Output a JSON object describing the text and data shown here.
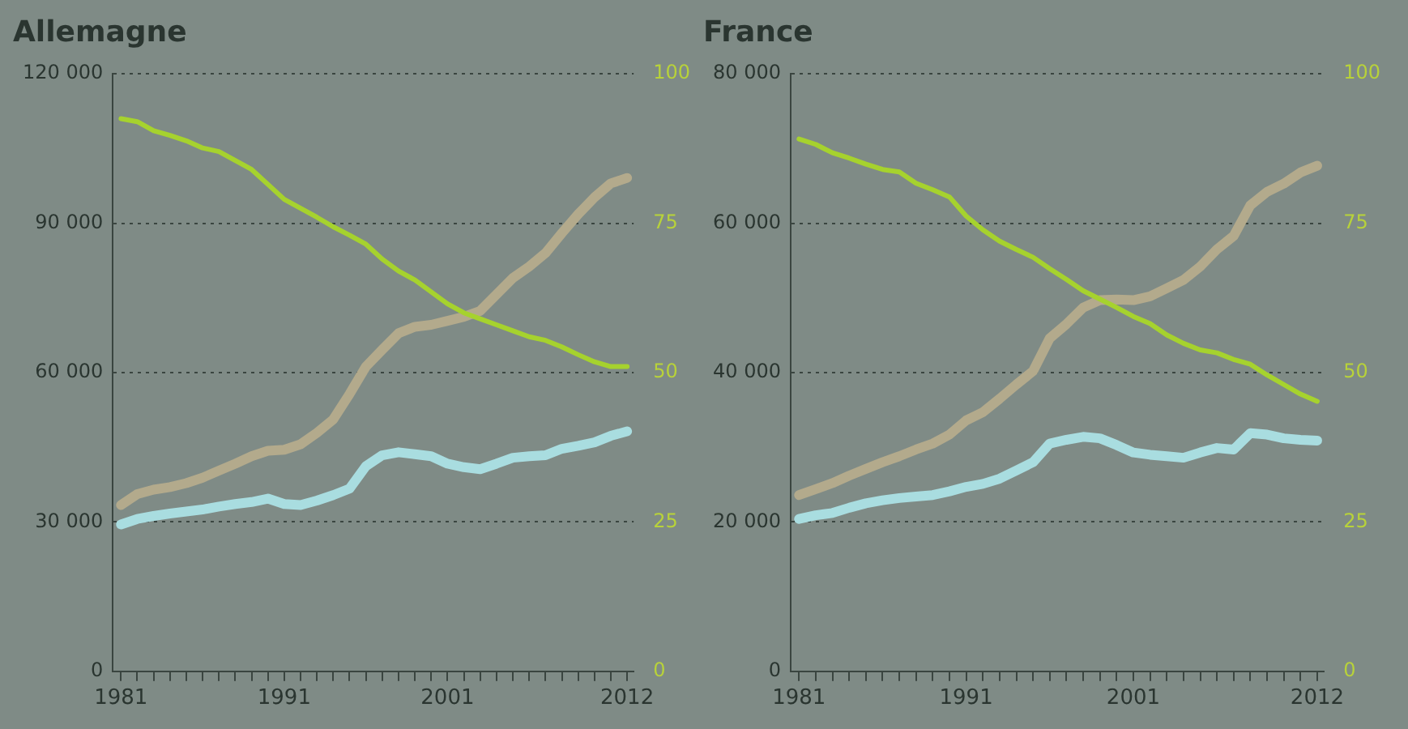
{
  "chart_data": [
    {
      "type": "line",
      "title": "Allemagne",
      "x": [
        1981,
        1982,
        1983,
        1984,
        1985,
        1986,
        1987,
        1988,
        1989,
        1990,
        1991,
        1992,
        1993,
        1994,
        1995,
        1996,
        1997,
        1998,
        1999,
        2000,
        2001,
        2002,
        2003,
        2004,
        2005,
        2006,
        2007,
        2008,
        2009,
        2010,
        2011,
        2012
      ],
      "xlim": [
        1980.5,
        2012.4
      ],
      "xticks": [
        {
          "value": 1981,
          "label": "1981"
        },
        {
          "value": 1982,
          "label": null
        },
        {
          "value": 1983,
          "label": null
        },
        {
          "value": 1984,
          "label": null
        },
        {
          "value": 1985,
          "label": null
        },
        {
          "value": 1986,
          "label": null
        },
        {
          "value": 1987,
          "label": null
        },
        {
          "value": 1988,
          "label": null
        },
        {
          "value": 1989,
          "label": null
        },
        {
          "value": 1990,
          "label": null
        },
        {
          "value": 1991,
          "label": "1991"
        },
        {
          "value": 1992,
          "label": null
        },
        {
          "value": 1993,
          "label": null
        },
        {
          "value": 1994,
          "label": null
        },
        {
          "value": 1995,
          "label": null
        },
        {
          "value": 1996,
          "label": null
        },
        {
          "value": 1997,
          "label": null
        },
        {
          "value": 1998,
          "label": null
        },
        {
          "value": 1999,
          "label": null
        },
        {
          "value": 2000,
          "label": null
        },
        {
          "value": 2001,
          "label": "2001"
        },
        {
          "value": 2002,
          "label": null
        },
        {
          "value": 2003,
          "label": null
        },
        {
          "value": 2004,
          "label": null
        },
        {
          "value": 2005,
          "label": null
        },
        {
          "value": 2006,
          "label": null
        },
        {
          "value": 2007,
          "label": null
        },
        {
          "value": 2008,
          "label": null
        },
        {
          "value": 2009,
          "label": null
        },
        {
          "value": 2010,
          "label": null
        },
        {
          "value": 2011,
          "label": null
        },
        {
          "value": 2012,
          "label": "2012"
        }
      ],
      "ylim": [
        0,
        120000
      ],
      "yticks": [
        0,
        {
          "value": 30000,
          "label": "30 000"
        },
        {
          "value": 60000,
          "label": "60 000"
        },
        {
          "value": 90000,
          "label": "90 000"
        },
        {
          "value": 120000,
          "label": "120 000"
        }
      ],
      "y2lim": [
        0,
        100
      ],
      "y2ticks": [
        0,
        25,
        50,
        75,
        100
      ],
      "grid": "y",
      "marker": "none",
      "line_style": "solid",
      "series": [
        {
          "color": "#a6d22e",
          "axis": "y2",
          "values": [
            92.5,
            92,
            90.5,
            89.7,
            88.8,
            87.6,
            87,
            85.5,
            84,
            81.5,
            79,
            77.5,
            76,
            74.4,
            73,
            71.5,
            69,
            67,
            65.5,
            63.5,
            61.5,
            60,
            59,
            58,
            57,
            56,
            55.4,
            54.3,
            53,
            51.8,
            51,
            51
          ]
        },
        {
          "color": "#b3aa8c",
          "values": [
            33400,
            35600,
            36500,
            37000,
            37800,
            38900,
            40300,
            41700,
            43200,
            44300,
            44500,
            45600,
            47900,
            50600,
            55700,
            61200,
            64600,
            67900,
            69200,
            69600,
            70400,
            71200,
            72400,
            75700,
            79000,
            81300,
            84000,
            88000,
            91800,
            95200,
            98000,
            99100
          ]
        },
        {
          "color": "#a9dde0",
          "values": [
            29500,
            30600,
            31200,
            31700,
            32100,
            32500,
            33100,
            33600,
            34000,
            34700,
            33600,
            33400,
            34300,
            35400,
            36700,
            41200,
            43400,
            44000,
            43600,
            43200,
            41700,
            41000,
            40600,
            41700,
            42900,
            43200,
            43400,
            44700,
            45300,
            46000,
            47300,
            48200
          ]
        }
      ]
    },
    {
      "type": "line",
      "title": "France",
      "x": [
        1981,
        1982,
        1983,
        1984,
        1985,
        1986,
        1987,
        1988,
        1989,
        1990,
        1991,
        1992,
        1993,
        1994,
        1995,
        1996,
        1997,
        1998,
        1999,
        2000,
        2001,
        2002,
        2003,
        2004,
        2005,
        2006,
        2007,
        2008,
        2009,
        2010,
        2011,
        2012
      ],
      "xlim": [
        1980.5,
        2012.4
      ],
      "xticks": [
        {
          "value": 1981,
          "label": "1981"
        },
        {
          "value": 1982,
          "label": null
        },
        {
          "value": 1983,
          "label": null
        },
        {
          "value": 1984,
          "label": null
        },
        {
          "value": 1985,
          "label": null
        },
        {
          "value": 1986,
          "label": null
        },
        {
          "value": 1987,
          "label": null
        },
        {
          "value": 1988,
          "label": null
        },
        {
          "value": 1989,
          "label": null
        },
        {
          "value": 1990,
          "label": null
        },
        {
          "value": 1991,
          "label": "1991"
        },
        {
          "value": 1992,
          "label": null
        },
        {
          "value": 1993,
          "label": null
        },
        {
          "value": 1994,
          "label": null
        },
        {
          "value": 1995,
          "label": null
        },
        {
          "value": 1996,
          "label": null
        },
        {
          "value": 1997,
          "label": null
        },
        {
          "value": 1998,
          "label": null
        },
        {
          "value": 1999,
          "label": null
        },
        {
          "value": 2000,
          "label": null
        },
        {
          "value": 2001,
          "label": "2001"
        },
        {
          "value": 2002,
          "label": null
        },
        {
          "value": 2003,
          "label": null
        },
        {
          "value": 2004,
          "label": null
        },
        {
          "value": 2005,
          "label": null
        },
        {
          "value": 2006,
          "label": null
        },
        {
          "value": 2007,
          "label": null
        },
        {
          "value": 2008,
          "label": null
        },
        {
          "value": 2009,
          "label": null
        },
        {
          "value": 2010,
          "label": null
        },
        {
          "value": 2011,
          "label": null
        },
        {
          "value": 2012,
          "label": "2012"
        }
      ],
      "ylim": [
        0,
        80000
      ],
      "yticks": [
        0,
        {
          "value": 20000,
          "label": "20 000"
        },
        {
          "value": 40000,
          "label": "40 000"
        },
        {
          "value": 60000,
          "label": "60 000"
        },
        {
          "value": 80000,
          "label": "80 000"
        }
      ],
      "y2lim": [
        0,
        100
      ],
      "y2ticks": [
        0,
        25,
        50,
        75,
        100
      ],
      "grid": "y",
      "marker": "none",
      "line_style": "solid",
      "series": [
        {
          "color": "#a6d22e",
          "axis": "y2",
          "values": [
            89.1,
            88.2,
            86.8,
            85.9,
            84.9,
            84,
            83.6,
            81.7,
            80.6,
            79.4,
            76.2,
            73.9,
            72,
            70.6,
            69.3,
            67.4,
            65.6,
            63.7,
            62.3,
            60.9,
            59.4,
            58.2,
            56.3,
            54.9,
            53.8,
            53.3,
            52.2,
            51.4,
            49.6,
            48,
            46.4,
            45.2
          ]
        },
        {
          "color": "#b3aa8c",
          "values": [
            23600,
            24400,
            25200,
            26200,
            27100,
            28000,
            28800,
            29700,
            30500,
            31700,
            33600,
            34700,
            36500,
            38400,
            40200,
            44600,
            46500,
            48700,
            49700,
            49800,
            49700,
            50200,
            51300,
            52400,
            54200,
            56500,
            58300,
            62400,
            64200,
            65300,
            66800,
            67700
          ]
        },
        {
          "color": "#a9dde0",
          "values": [
            20400,
            20900,
            21200,
            21900,
            22500,
            22900,
            23200,
            23400,
            23600,
            24100,
            24700,
            25100,
            25800,
            26900,
            28000,
            30500,
            31000,
            31400,
            31200,
            30300,
            29300,
            29000,
            28800,
            28600,
            29300,
            29900,
            29700,
            31900,
            31700,
            31200,
            31000,
            30900
          ]
        }
      ]
    }
  ]
}
